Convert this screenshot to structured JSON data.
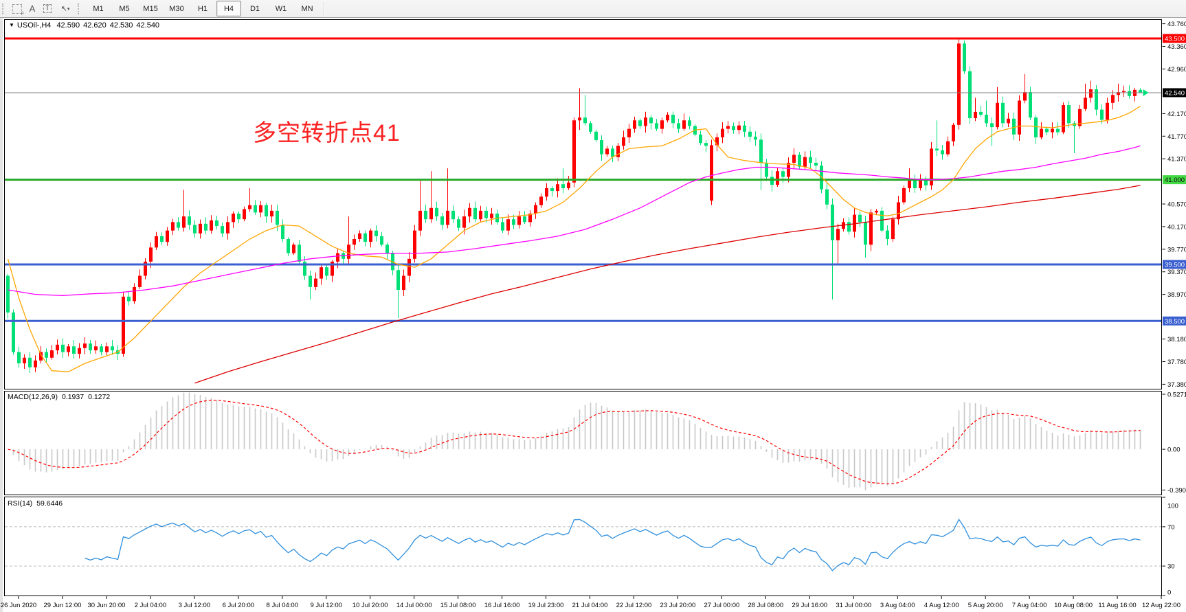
{
  "toolbar": {
    "tools": [
      {
        "name": "dotted-grid",
        "glyph": "F"
      },
      {
        "name": "text-label",
        "glyph": "A"
      },
      {
        "name": "text-box",
        "glyph": "T"
      },
      {
        "name": "shapes",
        "glyph": "↖",
        "dropdown": "▾"
      }
    ],
    "timeframes": [
      "M1",
      "M5",
      "M15",
      "M30",
      "H1",
      "H4",
      "D1",
      "W1",
      "MN"
    ],
    "active_timeframe": "H4"
  },
  "chart": {
    "header": {
      "symbol": "USOil-,H4",
      "open": "42.590",
      "high": "42.620",
      "low": "42.530",
      "close": "42.540"
    },
    "annotation": {
      "text": "多空转折点41",
      "color": "#fa2222"
    },
    "levels": [
      {
        "name": "resistance-line",
        "price": 43.5,
        "label": "43.500",
        "line_color": "#fe0000",
        "width": 3,
        "badge_bg": "#fe0000",
        "badge_fg": "#ffffff"
      },
      {
        "name": "last-price-line",
        "price": 42.54,
        "label": "42.540",
        "line_color": "#808080",
        "width": 1,
        "badge_bg": "#000000",
        "badge_fg": "#ffffff"
      },
      {
        "name": "pivot-line",
        "price": 41.0,
        "label": "41.000",
        "line_color": "#28a828",
        "width": 3,
        "badge_bg": "#44d944",
        "badge_fg": "#000000"
      },
      {
        "name": "support-line-1",
        "price": 39.5,
        "label": "39.500",
        "line_color": "#3a5fd0",
        "width": 3,
        "badge_bg": "#3a5fd0",
        "badge_fg": "#ffffff"
      },
      {
        "name": "support-line-2",
        "price": 38.5,
        "label": "38.500",
        "line_color": "#3a5fd0",
        "width": 3,
        "badge_bg": "#3a5fd0",
        "badge_fg": "#ffffff"
      }
    ],
    "price_ticks": [
      {
        "price": 43.76,
        "label": "43.760"
      },
      {
        "price": 43.36,
        "label": "43.360"
      },
      {
        "price": 42.96,
        "label": "42.960"
      },
      {
        "price": 42.17,
        "label": "42.170"
      },
      {
        "price": 41.77,
        "label": "41.770"
      },
      {
        "price": 41.37,
        "label": "41.370"
      },
      {
        "price": 40.57,
        "label": "40.570"
      },
      {
        "price": 40.17,
        "label": "40.170"
      },
      {
        "price": 39.77,
        "label": "39.770"
      },
      {
        "price": 39.37,
        "label": "39.370"
      },
      {
        "price": 38.97,
        "label": "38.970"
      },
      {
        "price": 38.18,
        "label": "38.180"
      },
      {
        "price": 37.78,
        "label": "37.780"
      },
      {
        "price": 37.38,
        "label": "37.380"
      }
    ]
  },
  "macd_panel": {
    "label": "MACD(12,26,9)",
    "main_value": "0.1937",
    "signal_value": "0.1272",
    "axis": [
      {
        "value": 0.5271,
        "label": "0.5271"
      },
      {
        "value": 0.0,
        "label": "0.00"
      },
      {
        "value": -0.3901,
        "label": "-0.3901"
      }
    ],
    "ylim": [
      -0.44,
      0.56
    ],
    "histogram_color": "#c8c8c8",
    "signal_color": "#ff0000"
  },
  "rsi_panel": {
    "label": "RSI(14)",
    "value": "59.6446",
    "axis": [
      {
        "value": 100,
        "label": "100"
      },
      {
        "value": 70,
        "label": "70"
      },
      {
        "value": 30,
        "label": "30"
      },
      {
        "value": 0,
        "label": "0"
      }
    ],
    "levels": [
      70,
      30
    ],
    "line_color": "#2f8fdd",
    "level_color": "#bcbcbc"
  },
  "date_axis": {
    "labels": [
      "26 Jun 2020",
      "29 Jun 12:00",
      "30 Jun 20:00",
      "2 Jul 04:00",
      "3 Jul 12:00",
      "6 Jul 20:00",
      "8 Jul 04:00",
      "9 Jul 12:00",
      "10 Jul 20:00",
      "14 Jul 00:00",
      "15 Jul 08:00",
      "16 Jul 16:00",
      "19 Jul 23:00",
      "21 Jul 04:00",
      "22 Jul 12:00",
      "23 Jul 20:00",
      "27 Jul 00:00",
      "28 Jul 08:00",
      "29 Jul 16:00",
      "31 Jul 00:00",
      "3 Aug 04:00",
      "4 Aug 12:00",
      "5 Aug 20:00",
      "7 Aug 04:00",
      "10 Aug 08:00",
      "11 Aug 16:00",
      "12 Aug 22:00"
    ]
  },
  "chart_data": {
    "type": "candlestick",
    "symbol": "USOil-",
    "timeframe": "H4",
    "ylim": [
      37.3,
      43.84
    ],
    "bull_color": "#ff0000",
    "bear_color": "#00e076",
    "first_open": 39.3,
    "closes": [
      38.65,
      37.95,
      37.75,
      37.85,
      37.68,
      37.8,
      37.95,
      37.85,
      37.98,
      38.08,
      37.95,
      38.05,
      37.92,
      38.02,
      38.1,
      37.98,
      38.05,
      37.95,
      38.05,
      37.98,
      37.92,
      38.93,
      38.85,
      39.1,
      39.3,
      39.55,
      39.8,
      40.0,
      39.9,
      40.1,
      40.25,
      40.15,
      40.35,
      40.2,
      40.05,
      40.22,
      40.1,
      40.28,
      40.18,
      40.05,
      40.25,
      40.4,
      40.3,
      40.48,
      40.55,
      40.42,
      40.55,
      40.35,
      40.45,
      40.2,
      39.95,
      39.7,
      39.85,
      39.55,
      39.3,
      39.1,
      39.25,
      39.45,
      39.3,
      39.55,
      39.7,
      39.6,
      39.85,
      39.95,
      40.05,
      39.9,
      40.1,
      40.0,
      39.85,
      39.7,
      39.4,
      39.05,
      39.3,
      39.6,
      40.1,
      40.45,
      40.3,
      40.5,
      40.35,
      40.2,
      40.45,
      40.3,
      40.15,
      40.35,
      40.5,
      40.3,
      40.45,
      40.32,
      40.4,
      40.25,
      40.1,
      40.3,
      40.2,
      40.35,
      40.25,
      40.4,
      40.55,
      40.7,
      40.85,
      40.8,
      40.92,
      40.85,
      40.95,
      42.05,
      42.1,
      42.0,
      41.85,
      41.7,
      41.45,
      41.55,
      41.4,
      41.6,
      41.75,
      41.9,
      42.05,
      41.95,
      42.1,
      42.0,
      41.9,
      42.05,
      42.15,
      42.0,
      41.9,
      42.05,
      41.95,
      41.8,
      41.65,
      41.6,
      41.61,
      41.75,
      41.9,
      41.95,
      41.88,
      41.96,
      41.85,
      41.76,
      41.71,
      41.3,
      41.05,
      40.91,
      41.15,
      41.05,
      41.3,
      41.44,
      41.23,
      41.4,
      41.3,
      41.25,
      40.83,
      40.56,
      39.93,
      40.13,
      40.25,
      40.08,
      40.38,
      40.25,
      39.85,
      40.42,
      40.45,
      40.1,
      39.95,
      40.3,
      40.6,
      40.85,
      40.99,
      40.85,
      41.0,
      40.9,
      41.55,
      41.52,
      41.45,
      41.68,
      41.97,
      43.41,
      42.92,
      42.09,
      42.2,
      42.15,
      42.0,
      41.93,
      42.36,
      42.0,
      42.08,
      41.8,
      42.4,
      42.55,
      42.1,
      41.75,
      41.9,
      41.84,
      41.9,
      41.84,
      42.32,
      42.0,
      41.95,
      42.25,
      42.45,
      42.6,
      42.24,
      42.06,
      42.36,
      42.5,
      42.55,
      42.57,
      42.48,
      42.59,
      42.54
    ],
    "open_overrides": {
      "128": 40.63
    },
    "wick_overrides": {
      "4": {
        "l": 37.58
      },
      "21": {
        "h": 39.0
      },
      "32": {
        "h": 40.82
      },
      "44": {
        "h": 40.85
      },
      "55": {
        "l": 38.88
      },
      "62": {
        "h": 40.35
      },
      "71": {
        "l": 38.55
      },
      "75": {
        "h": 41.0
      },
      "77": {
        "h": 41.15
      },
      "80": {
        "h": 41.2
      },
      "101": {
        "h": 41.2
      },
      "103": {
        "h": 42.1
      },
      "104": {
        "h": 42.62,
        "l": 41.88
      },
      "105": {
        "h": 42.5
      },
      "128": {
        "l": 40.55
      },
      "137": {
        "l": 40.82
      },
      "150": {
        "l": 38.88
      },
      "151": {
        "l": 39.5
      },
      "156": {
        "l": 39.62
      },
      "164": {
        "h": 41.2,
        "l": 40.78
      },
      "169": {
        "h": 42.05
      },
      "173": {
        "h": 43.5
      },
      "175": {
        "l": 41.99
      },
      "176": {
        "h": 42.45
      },
      "178": {
        "h": 42.4
      },
      "179": {
        "l": 41.6
      },
      "180": {
        "h": 42.64
      },
      "185": {
        "h": 42.87
      },
      "194": {
        "l": 41.47
      },
      "196": {
        "h": 42.7
      },
      "197": {
        "h": 42.75
      },
      "202": {
        "h": 42.7
      },
      "206": {
        "h": 42.62,
        "l": 42.53
      }
    },
    "moving_averages": [
      {
        "name": "fast-ma",
        "color": "#ffa500",
        "anchors": [
          [
            0,
            39.6
          ],
          [
            2,
            38.9
          ],
          [
            4,
            38.35
          ],
          [
            6,
            37.9
          ],
          [
            8,
            37.62
          ],
          [
            11,
            37.6
          ],
          [
            14,
            37.75
          ],
          [
            17,
            37.85
          ],
          [
            20,
            37.95
          ],
          [
            23,
            38.2
          ],
          [
            26,
            38.5
          ],
          [
            29,
            38.8
          ],
          [
            32,
            39.1
          ],
          [
            35,
            39.35
          ],
          [
            38,
            39.55
          ],
          [
            41,
            39.75
          ],
          [
            44,
            39.95
          ],
          [
            47,
            40.1
          ],
          [
            50,
            40.2
          ],
          [
            53,
            40.18
          ],
          [
            56,
            40.0
          ],
          [
            59,
            39.82
          ],
          [
            62,
            39.7
          ],
          [
            65,
            39.65
          ],
          [
            68,
            39.63
          ],
          [
            71,
            39.5
          ],
          [
            74,
            39.45
          ],
          [
            77,
            39.6
          ],
          [
            80,
            39.85
          ],
          [
            83,
            40.1
          ],
          [
            86,
            40.25
          ],
          [
            89,
            40.32
          ],
          [
            92,
            40.35
          ],
          [
            95,
            40.38
          ],
          [
            98,
            40.45
          ],
          [
            101,
            40.6
          ],
          [
            104,
            40.85
          ],
          [
            107,
            41.15
          ],
          [
            110,
            41.4
          ],
          [
            113,
            41.55
          ],
          [
            116,
            41.58
          ],
          [
            119,
            41.6
          ],
          [
            122,
            41.72
          ],
          [
            125,
            41.88
          ],
          [
            127,
            41.9
          ],
          [
            129,
            41.62
          ],
          [
            131,
            41.4
          ],
          [
            134,
            41.34
          ],
          [
            137,
            41.3
          ],
          [
            140,
            41.28
          ],
          [
            143,
            41.27
          ],
          [
            146,
            41.2
          ],
          [
            148,
            41.05
          ],
          [
            150,
            40.85
          ],
          [
            152,
            40.65
          ],
          [
            154,
            40.5
          ],
          [
            156,
            40.42
          ],
          [
            158,
            40.38
          ],
          [
            160,
            40.36
          ],
          [
            162,
            40.4
          ],
          [
            164,
            40.5
          ],
          [
            166,
            40.6
          ],
          [
            168,
            40.7
          ],
          [
            170,
            40.82
          ],
          [
            172,
            41.0
          ],
          [
            174,
            41.3
          ],
          [
            176,
            41.55
          ],
          [
            178,
            41.72
          ],
          [
            180,
            41.85
          ],
          [
            182,
            41.9
          ],
          [
            184,
            41.95
          ],
          [
            186,
            41.95
          ],
          [
            188,
            41.93
          ],
          [
            190,
            41.92
          ],
          [
            192,
            41.95
          ],
          [
            194,
            41.98
          ],
          [
            196,
            42.0
          ],
          [
            198,
            42.02
          ],
          [
            200,
            42.05
          ],
          [
            202,
            42.1
          ],
          [
            204,
            42.18
          ],
          [
            206,
            42.3
          ]
        ]
      },
      {
        "name": "mid-ma",
        "color": "#ff00ff",
        "anchors": [
          [
            0,
            39.05
          ],
          [
            5,
            38.97
          ],
          [
            10,
            38.95
          ],
          [
            15,
            38.98
          ],
          [
            20,
            39.0
          ],
          [
            25,
            39.05
          ],
          [
            30,
            39.12
          ],
          [
            35,
            39.22
          ],
          [
            40,
            39.32
          ],
          [
            45,
            39.42
          ],
          [
            50,
            39.52
          ],
          [
            55,
            39.6
          ],
          [
            60,
            39.65
          ],
          [
            65,
            39.68
          ],
          [
            70,
            39.7
          ],
          [
            75,
            39.7
          ],
          [
            80,
            39.72
          ],
          [
            85,
            39.78
          ],
          [
            90,
            39.85
          ],
          [
            95,
            39.92
          ],
          [
            100,
            40.0
          ],
          [
            105,
            40.12
          ],
          [
            110,
            40.3
          ],
          [
            115,
            40.5
          ],
          [
            118,
            40.65
          ],
          [
            121,
            40.8
          ],
          [
            124,
            40.95
          ],
          [
            127,
            41.05
          ],
          [
            130,
            41.12
          ],
          [
            133,
            41.18
          ],
          [
            136,
            41.22
          ],
          [
            139,
            41.22
          ],
          [
            142,
            41.2
          ],
          [
            145,
            41.18
          ],
          [
            148,
            41.15
          ],
          [
            151,
            41.12
          ],
          [
            154,
            41.1
          ],
          [
            157,
            41.08
          ],
          [
            160,
            41.05
          ],
          [
            163,
            41.03
          ],
          [
            166,
            41.0
          ],
          [
            169,
            41.0
          ],
          [
            172,
            41.02
          ],
          [
            175,
            41.05
          ],
          [
            178,
            41.1
          ],
          [
            181,
            41.15
          ],
          [
            184,
            41.18
          ],
          [
            187,
            41.22
          ],
          [
            190,
            41.28
          ],
          [
            193,
            41.33
          ],
          [
            196,
            41.38
          ],
          [
            199,
            41.45
          ],
          [
            202,
            41.5
          ],
          [
            205,
            41.57
          ],
          [
            206,
            41.6
          ]
        ]
      },
      {
        "name": "slow-ma",
        "color": "#dd0000",
        "anchors": [
          [
            34,
            37.4
          ],
          [
            40,
            37.6
          ],
          [
            46,
            37.78
          ],
          [
            52,
            37.95
          ],
          [
            58,
            38.12
          ],
          [
            64,
            38.3
          ],
          [
            70,
            38.48
          ],
          [
            76,
            38.65
          ],
          [
            82,
            38.82
          ],
          [
            88,
            38.98
          ],
          [
            94,
            39.12
          ],
          [
            100,
            39.27
          ],
          [
            106,
            39.42
          ],
          [
            112,
            39.55
          ],
          [
            118,
            39.67
          ],
          [
            124,
            39.78
          ],
          [
            130,
            39.88
          ],
          [
            136,
            39.98
          ],
          [
            142,
            40.07
          ],
          [
            148,
            40.15
          ],
          [
            154,
            40.22
          ],
          [
            160,
            40.3
          ],
          [
            166,
            40.38
          ],
          [
            172,
            40.45
          ],
          [
            178,
            40.52
          ],
          [
            184,
            40.6
          ],
          [
            190,
            40.67
          ],
          [
            196,
            40.75
          ],
          [
            202,
            40.83
          ],
          [
            206,
            40.9
          ]
        ]
      }
    ],
    "marker": {
      "name": "last-price-arrow",
      "color": "#00e076",
      "price": 42.54
    }
  }
}
